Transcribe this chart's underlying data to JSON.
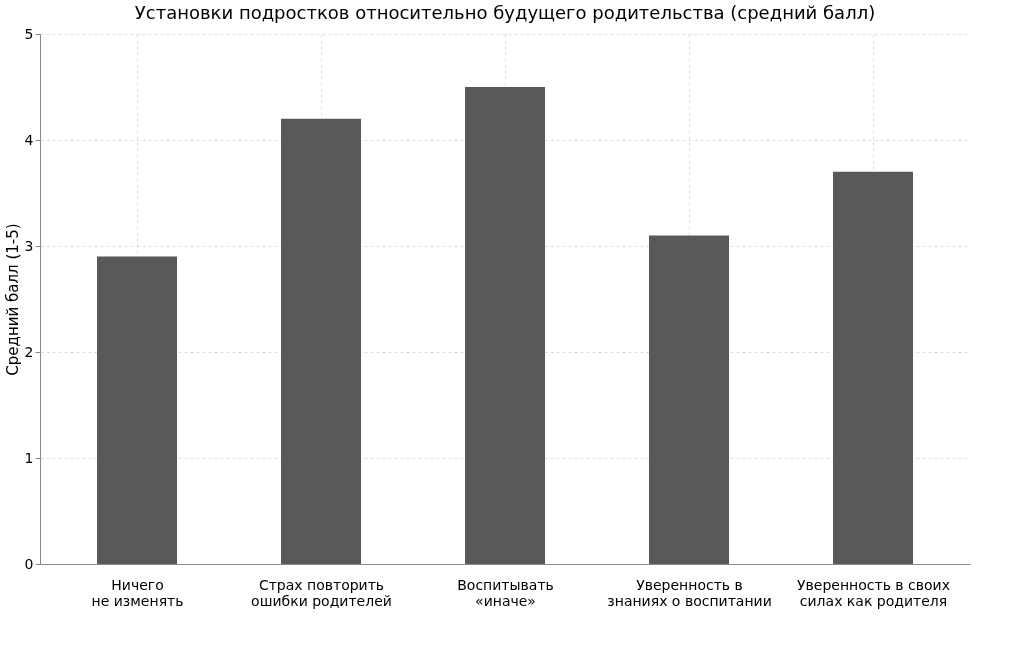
{
  "chart_data": {
    "type": "bar",
    "title": "Установки подростков относительно будущего родительства (средний балл)",
    "ylabel": "Средний балл (1-5)",
    "categories": [
      "Ничего\nне изменять",
      "Страх повторить\nошибки родителей",
      "Воспитывать\n«иначе»",
      "Уверенность в\nзнаниях о воспитании",
      "Уверенность в своих\nсилах как родителя"
    ],
    "values": [
      2.9,
      4.2,
      4.5,
      3.1,
      3.7
    ],
    "color": "#595959",
    "ylim": [
      0,
      5
    ],
    "yticks": [
      0,
      1,
      2,
      3,
      4,
      5
    ],
    "grid": true
  }
}
